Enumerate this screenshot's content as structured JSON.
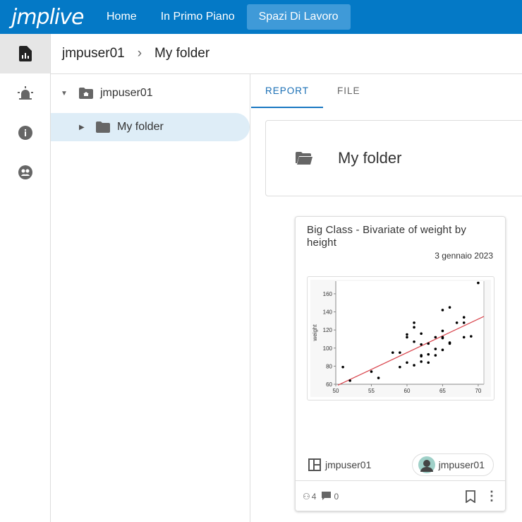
{
  "topbar": {
    "logo": "jmplive",
    "nav": [
      {
        "label": "Home"
      },
      {
        "label": "In Primo Piano"
      },
      {
        "label": "Spazi Di Lavoro"
      }
    ],
    "active": "Spazi Di Lavoro",
    "color": "#0479c6"
  },
  "rail": {
    "items": [
      {
        "icon": "report-icon",
        "active": true
      },
      {
        "icon": "alert-siren-icon"
      },
      {
        "icon": "info-icon"
      },
      {
        "icon": "groups-icon"
      }
    ]
  },
  "breadcrumb": {
    "items": [
      "jmpuser01",
      "My folder"
    ]
  },
  "tree": {
    "root": "jmpuser01",
    "child": "My folder"
  },
  "tabs": [
    {
      "label": "REPORT",
      "active": true
    },
    {
      "label": "FILE"
    }
  ],
  "folder": {
    "title": "My folder"
  },
  "report": {
    "title": "Big Class - Bivariate of weight by height",
    "date": "3 gennaio 2023",
    "owner": "jmpuser01",
    "author": "jmpuser01",
    "views": "4",
    "comments": "0"
  },
  "chart_data": {
    "type": "scatter",
    "xlabel": "",
    "ylabel": "weight",
    "xlim": [
      50,
      70.8
    ],
    "ylim": [
      60,
      174
    ],
    "xticks": [
      50,
      55,
      60,
      65,
      70
    ],
    "yticks": [
      60,
      80,
      100,
      120,
      140,
      160
    ],
    "points": [
      [
        51,
        79
      ],
      [
        52,
        64
      ],
      [
        55,
        74
      ],
      [
        56,
        67
      ],
      [
        58,
        95
      ],
      [
        59,
        95
      ],
      [
        59,
        79
      ],
      [
        60,
        115
      ],
      [
        60,
        112
      ],
      [
        60,
        84
      ],
      [
        61,
        128
      ],
      [
        61,
        123
      ],
      [
        61,
        107
      ],
      [
        61,
        81
      ],
      [
        62,
        116
      ],
      [
        62,
        104
      ],
      [
        62,
        92
      ],
      [
        62,
        91
      ],
      [
        62,
        85
      ],
      [
        63,
        105
      ],
      [
        63,
        93
      ],
      [
        63,
        84
      ],
      [
        64,
        112
      ],
      [
        64,
        99
      ],
      [
        64,
        92
      ],
      [
        65,
        142
      ],
      [
        65,
        119
      ],
      [
        65,
        112
      ],
      [
        65,
        111
      ],
      [
        65,
        98
      ],
      [
        66,
        145
      ],
      [
        66,
        106
      ],
      [
        66,
        105
      ],
      [
        67,
        128
      ],
      [
        68,
        134
      ],
      [
        68,
        128
      ],
      [
        68,
        112
      ],
      [
        69,
        113
      ],
      [
        70,
        172
      ]
    ],
    "fit_line": {
      "x": [
        50.3,
        70.8
      ],
      "y": [
        59,
        135
      ],
      "color": "#d9474f"
    }
  }
}
